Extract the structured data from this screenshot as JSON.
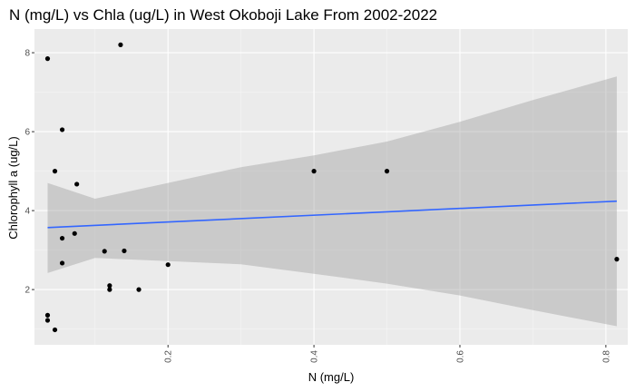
{
  "chart_data": {
    "type": "scatter",
    "title": "N (mg/L) vs Chla (ug/L) in West Okoboji Lake From 2002-2022",
    "xlabel": "N (mg/L)",
    "ylabel": "Chlorophyll a (ug/L)",
    "xlim": [
      0.017,
      0.83
    ],
    "ylim": [
      0.6,
      8.6
    ],
    "x_ticks": [
      0.2,
      0.4,
      0.6,
      0.8
    ],
    "x_tick_labels": [
      "0.2",
      "0.4",
      "0.6",
      "0.8"
    ],
    "y_ticks": [
      2,
      4,
      6,
      8
    ],
    "y_tick_labels": [
      "2",
      "4",
      "6",
      "8"
    ],
    "grid": true,
    "points": [
      {
        "x": 0.035,
        "y": 7.85
      },
      {
        "x": 0.135,
        "y": 8.2
      },
      {
        "x": 0.055,
        "y": 6.05
      },
      {
        "x": 0.045,
        "y": 5.0
      },
      {
        "x": 0.075,
        "y": 4.67
      },
      {
        "x": 0.072,
        "y": 3.42
      },
      {
        "x": 0.055,
        "y": 3.3
      },
      {
        "x": 0.113,
        "y": 2.97
      },
      {
        "x": 0.14,
        "y": 2.98
      },
      {
        "x": 0.055,
        "y": 2.67
      },
      {
        "x": 0.2,
        "y": 2.63
      },
      {
        "x": 0.12,
        "y": 2.1
      },
      {
        "x": 0.12,
        "y": 2.0
      },
      {
        "x": 0.16,
        "y": 2.0
      },
      {
        "x": 0.035,
        "y": 1.35
      },
      {
        "x": 0.035,
        "y": 1.22
      },
      {
        "x": 0.045,
        "y": 0.98
      },
      {
        "x": 0.4,
        "y": 5.0
      },
      {
        "x": 0.5,
        "y": 5.0
      },
      {
        "x": 0.815,
        "y": 2.77
      }
    ],
    "fit_line": {
      "x": [
        0.035,
        0.815
      ],
      "y": [
        3.57,
        4.24
      ]
    },
    "confidence_band": {
      "x": [
        0.035,
        0.1,
        0.2,
        0.3,
        0.4,
        0.5,
        0.6,
        0.7,
        0.815
      ],
      "upper": [
        4.7,
        4.3,
        4.7,
        5.1,
        5.4,
        5.75,
        6.25,
        6.8,
        7.4
      ],
      "lower": [
        2.42,
        2.8,
        2.72,
        2.64,
        2.4,
        2.15,
        1.85,
        1.48,
        1.07
      ]
    },
    "colors": {
      "panel": "#ebebeb",
      "grid_major": "#ffffff",
      "point": "#000000",
      "line": "#3366ff",
      "band": "#999999"
    }
  }
}
